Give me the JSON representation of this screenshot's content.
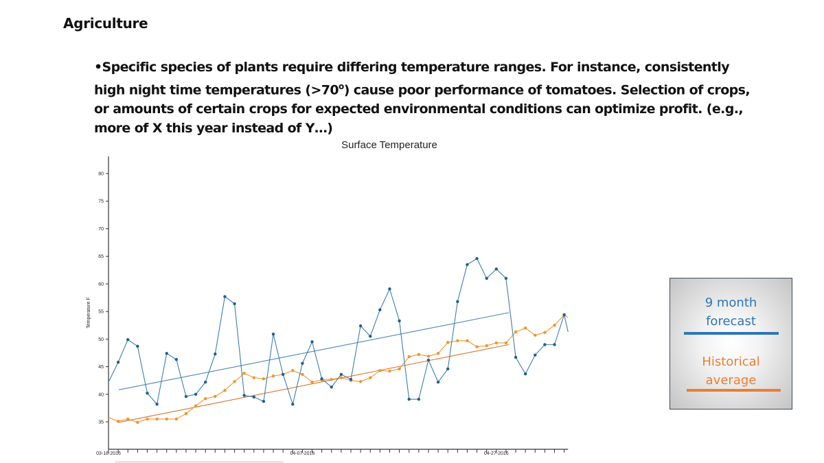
{
  "slide": {
    "title": "Agriculture",
    "bullet_lines": [
      "•Specific species of plants require differing temperature ranges.  For instance, consistently",
      "high night time temperatures (>70",
      "o",
      ") cause poor performance of tomatoes.  Selection of crops,",
      "or amounts of certain crops for expected environmental conditions can optimize profit. (e.g.,",
      "more of X this year instead of Y…)"
    ]
  },
  "legend": {
    "forecast_label_1": "9 month",
    "forecast_label_2": "forecast",
    "historical_label_1": "Historical",
    "historical_label_2": "average",
    "forecast_color": "#2e75b6",
    "historical_color": "#ed7d31"
  },
  "colors": {
    "forecast_series": "#3a7db5",
    "forecast_marker": "#1f5f8f",
    "historical_series": "#f0952c",
    "forecast_trend": "#4a85bd",
    "historical_trend": "#d8722a"
  },
  "chart_data": {
    "type": "line",
    "title": "Surface Temperature",
    "xlabel": "",
    "ylabel": "Temperature F",
    "ylim": [
      30,
      83
    ],
    "yticks": [
      35,
      40,
      45,
      50,
      55,
      60,
      65,
      70,
      75,
      80
    ],
    "x_start_date": "03-18-2016",
    "x_days_range": [
      0,
      47.4
    ],
    "x_tick_every_days": 1,
    "x_tick_labels": [
      {
        "day": 0,
        "label": "03-18-2016"
      },
      {
        "day": 20,
        "label": "04-07-2016"
      },
      {
        "day": 40,
        "label": "04-27-2016"
      }
    ],
    "grid": false,
    "series": [
      {
        "name": "9 month forecast",
        "values": [
          42.2,
          45.8,
          49.9,
          48.7,
          40.2,
          38.2,
          47.4,
          46.3,
          39.6,
          40.0,
          42.2,
          47.3,
          57.7,
          56.4,
          39.8,
          39.5,
          38.7,
          50.9,
          43.6,
          38.2,
          45.6,
          49.5,
          42.8,
          41.3,
          43.6,
          42.7,
          52.4,
          50.5,
          55.3,
          59.1,
          53.3,
          39.1,
          39.1,
          46.2,
          42.2,
          44.6,
          56.8,
          63.5,
          64.6,
          61.0,
          62.7,
          61.0,
          46.7,
          43.7,
          47.1,
          49.0,
          49.0,
          54.4,
          51.3
        ],
        "trend": {
          "x": [
            1.06,
            41.3
          ],
          "y": [
            40.8,
            54.8
          ]
        }
      },
      {
        "name": "Historical average",
        "values": [
          35.8,
          35.1,
          35.5,
          34.9,
          35.5,
          35.5,
          35.5,
          35.5,
          36.5,
          37.9,
          39.2,
          39.6,
          40.7,
          42.3,
          43.8,
          43.0,
          42.8,
          43.3,
          43.6,
          44.3,
          43.6,
          42.2,
          42.6,
          42.7,
          43.0,
          42.5,
          42.3,
          43.0,
          44.3,
          44.2,
          44.6,
          46.8,
          47.2,
          46.9,
          47.4,
          49.4,
          49.7,
          49.7,
          48.6,
          48.8,
          49.3,
          49.3,
          51.3,
          52.0,
          50.7,
          51.2,
          52.5,
          54.4,
          53.9
        ],
        "trend": {
          "x": [
            1.06,
            41.3
          ],
          "y": [
            34.9,
            49.0
          ]
        }
      }
    ],
    "legend_position": "right"
  }
}
